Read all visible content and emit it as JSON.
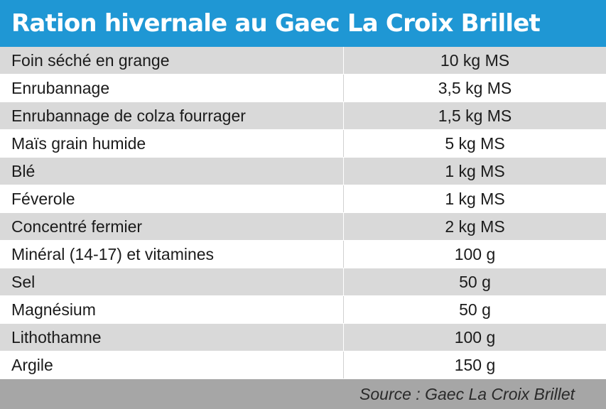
{
  "title": "Ration hivernale au Gaec La Croix Brillet",
  "rows": [
    {
      "label": "Foin séché en grange",
      "value": "10 kg MS"
    },
    {
      "label": "Enrubannage",
      "value": "3,5 kg MS"
    },
    {
      "label": "Enrubannage de colza fourrager",
      "value": "1,5 kg MS"
    },
    {
      "label": "Maïs grain humide",
      "value": "5 kg MS"
    },
    {
      "label": "Blé",
      "value": "1 kg MS"
    },
    {
      "label": "Féverole",
      "value": "1 kg MS"
    },
    {
      "label": "Concentré fermier",
      "value": "2 kg MS"
    },
    {
      "label": "Minéral (14-17) et vitamines",
      "value": "100 g"
    },
    {
      "label": "Sel",
      "value": "50 g"
    },
    {
      "label": "Magnésium",
      "value": "50 g"
    },
    {
      "label": "Lithothamne",
      "value": "100 g"
    },
    {
      "label": "Argile",
      "value": "150 g"
    }
  ],
  "source": "Source : Gaec La Croix Brillet",
  "colors": {
    "header": "#1f97d4",
    "row_shaded": "#d9d9d9",
    "footer": "#a6a6a6"
  }
}
